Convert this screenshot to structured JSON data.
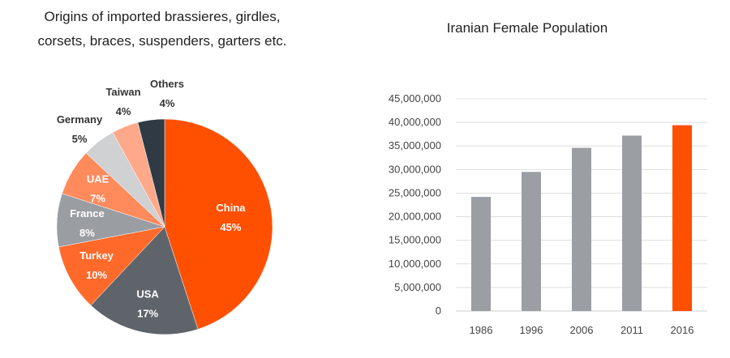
{
  "chart_data": [
    {
      "type": "pie",
      "title_lines": [
        "Origins of imported brassieres, girdles,",
        "corsets, braces, suspenders, garters etc."
      ],
      "slices": [
        {
          "label": "China",
          "value": 45,
          "value_label": "45%",
          "color": "#ff4f00",
          "label_color": "#ffffff"
        },
        {
          "label": "USA",
          "value": 17,
          "value_label": "17%",
          "color": "#5f646b",
          "label_color": "#ffffff"
        },
        {
          "label": "Turkey",
          "value": 10,
          "value_label": "10%",
          "color": "#ff6a2b",
          "label_color": "#ffffff"
        },
        {
          "label": "France",
          "value": 8,
          "value_label": "8%",
          "color": "#9a9da2",
          "label_color": "#ffffff"
        },
        {
          "label": "UAE",
          "value": 7,
          "value_label": "7%",
          "color": "#ff8a5c",
          "label_color": "#ffffff"
        },
        {
          "label": "Germany",
          "value": 5,
          "value_label": "5%",
          "color": "#cfd1d3",
          "label_color": "#333333"
        },
        {
          "label": "Taiwan",
          "value": 4,
          "value_label": "4%",
          "color": "#ffa98a",
          "label_color": "#333333"
        },
        {
          "label": "Others",
          "value": 4,
          "value_label": "4%",
          "color": "#2f3a45",
          "label_color": "#333333"
        }
      ]
    },
    {
      "type": "bar",
      "title": "Iranian Female Population",
      "categories": [
        "1986",
        "1996",
        "2006",
        "2011",
        "2016"
      ],
      "values": [
        24200000,
        29500000,
        34600000,
        37200000,
        39400000
      ],
      "bar_colors": [
        "#9b9ea3",
        "#9b9ea3",
        "#9b9ea3",
        "#9b9ea3",
        "#ff4f00"
      ],
      "ylim": [
        0,
        45000000
      ],
      "yticks": [
        "0",
        "5,000,000",
        "10,000,000",
        "15,000,000",
        "20,000,000",
        "25,000,000",
        "30,000,000",
        "35,000,000",
        "40,000,000",
        "45,000,000"
      ],
      "grid": true
    }
  ]
}
